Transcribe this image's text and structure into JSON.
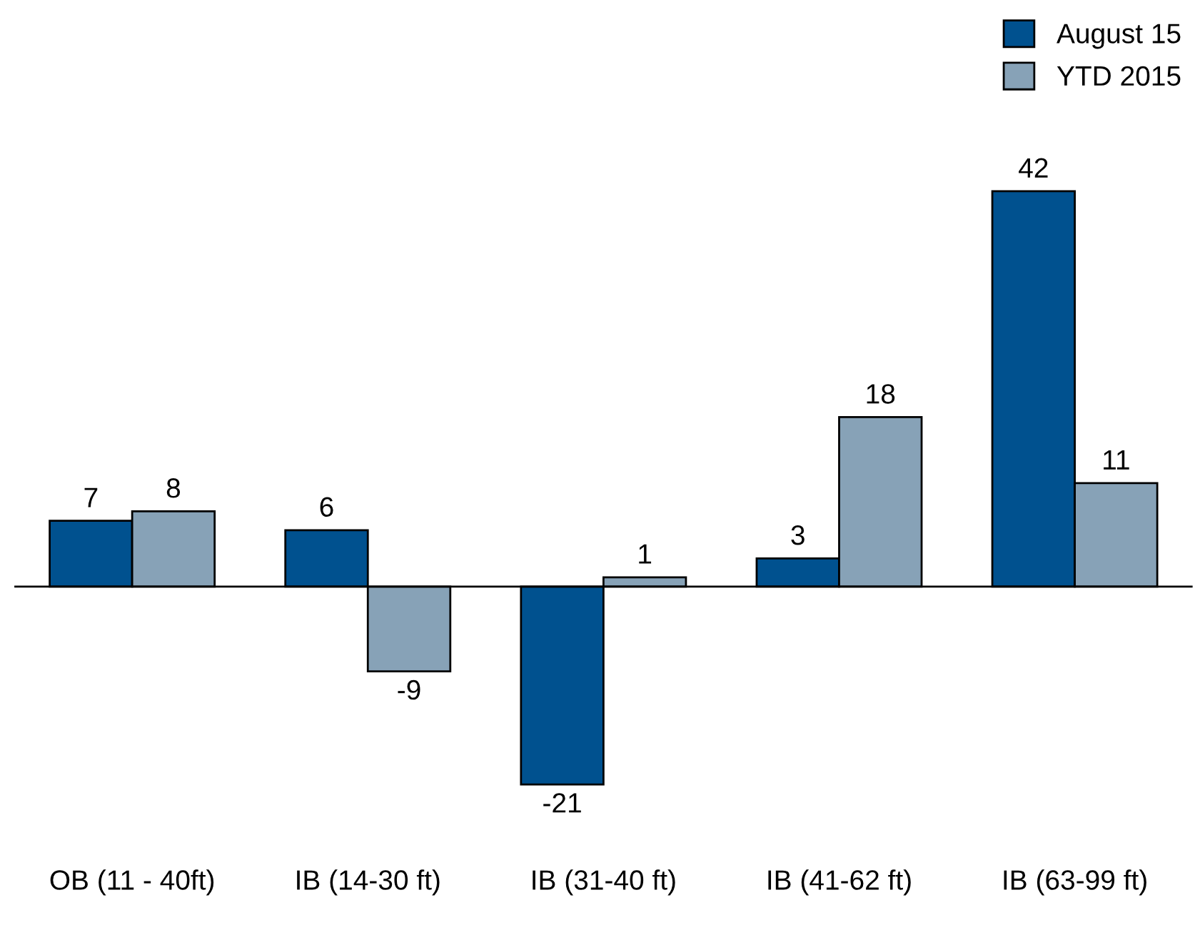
{
  "chart_data": {
    "type": "bar",
    "categories": [
      "OB (11 - 40ft)",
      "IB (14-30 ft)",
      "IB (31-40 ft)",
      "IB (41-62 ft)",
      "IB (63-99 ft)"
    ],
    "series": [
      {
        "name": "August 15",
        "color": "#00518f",
        "values": [
          7,
          6,
          -21,
          3,
          42
        ]
      },
      {
        "name": "YTD 2015",
        "color": "#87a2b7",
        "values": [
          8,
          -9,
          1,
          18,
          11
        ]
      }
    ],
    "data_labels": true,
    "legend": "top right",
    "grid": false,
    "tick_labels": "x"
  }
}
